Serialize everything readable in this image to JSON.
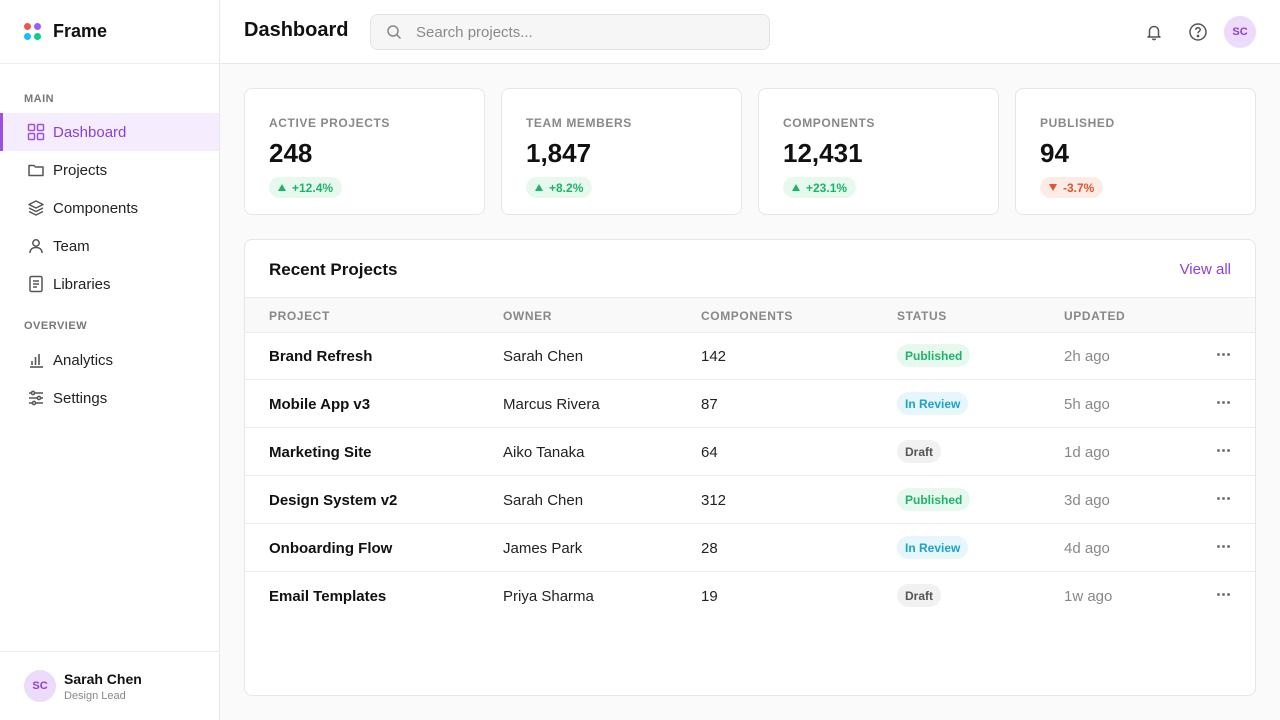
{
  "app": {
    "name": "Frame",
    "logo_colors": [
      "#f2564b",
      "#a259ff",
      "#1abcfe",
      "#0acf83"
    ]
  },
  "sidebar": {
    "sections": [
      {
        "title": "MAIN",
        "items": [
          {
            "label": "Dashboard",
            "icon": "grid-icon",
            "active": true
          },
          {
            "label": "Projects",
            "icon": "folder-icon"
          },
          {
            "label": "Components",
            "icon": "layers-icon"
          },
          {
            "label": "Team",
            "icon": "user-icon"
          },
          {
            "label": "Libraries",
            "icon": "document-icon"
          }
        ]
      },
      {
        "title": "OVERVIEW",
        "items": [
          {
            "label": "Analytics",
            "icon": "bar-chart-icon"
          },
          {
            "label": "Settings",
            "icon": "sliders-icon"
          }
        ]
      }
    ],
    "user": {
      "initials": "SC",
      "name": "Sarah Chen",
      "role": "Design Lead"
    }
  },
  "header": {
    "title": "Dashboard",
    "search_placeholder": "Search projects...",
    "avatar_initials": "SC"
  },
  "stats": [
    {
      "label": "ACTIVE PROJECTS",
      "value": "248",
      "delta": "+12.4%",
      "trend": "up"
    },
    {
      "label": "TEAM MEMBERS",
      "value": "1,847",
      "delta": "+8.2%",
      "trend": "up"
    },
    {
      "label": "COMPONENTS",
      "value": "12,431",
      "delta": "+23.1%",
      "trend": "up"
    },
    {
      "label": "PUBLISHED",
      "value": "94",
      "delta": "-3.7%",
      "trend": "down"
    }
  ],
  "recent": {
    "title": "Recent Projects",
    "view_all": "View all",
    "columns": [
      "PROJECT",
      "OWNER",
      "COMPONENTS",
      "STATUS",
      "UPDATED"
    ],
    "rows": [
      {
        "project": "Brand Refresh",
        "owner": "Sarah Chen",
        "components": "142",
        "status": "Published",
        "updated": "2h ago"
      },
      {
        "project": "Mobile App v3",
        "owner": "Marcus Rivera",
        "components": "87",
        "status": "In Review",
        "updated": "5h ago"
      },
      {
        "project": "Marketing Site",
        "owner": "Aiko Tanaka",
        "components": "64",
        "status": "Draft",
        "updated": "1d ago"
      },
      {
        "project": "Design System v2",
        "owner": "Sarah Chen",
        "components": "312",
        "status": "Published",
        "updated": "3d ago"
      },
      {
        "project": "Onboarding Flow",
        "owner": "James Park",
        "components": "28",
        "status": "In Review",
        "updated": "4d ago"
      },
      {
        "project": "Email Templates",
        "owner": "Priya Sharma",
        "components": "19",
        "status": "Draft",
        "updated": "1w ago"
      }
    ]
  },
  "colors": {
    "accent": "#9b51e0",
    "up": "#1db36a",
    "down": "#e0542e",
    "review": "#1aa3cf"
  }
}
